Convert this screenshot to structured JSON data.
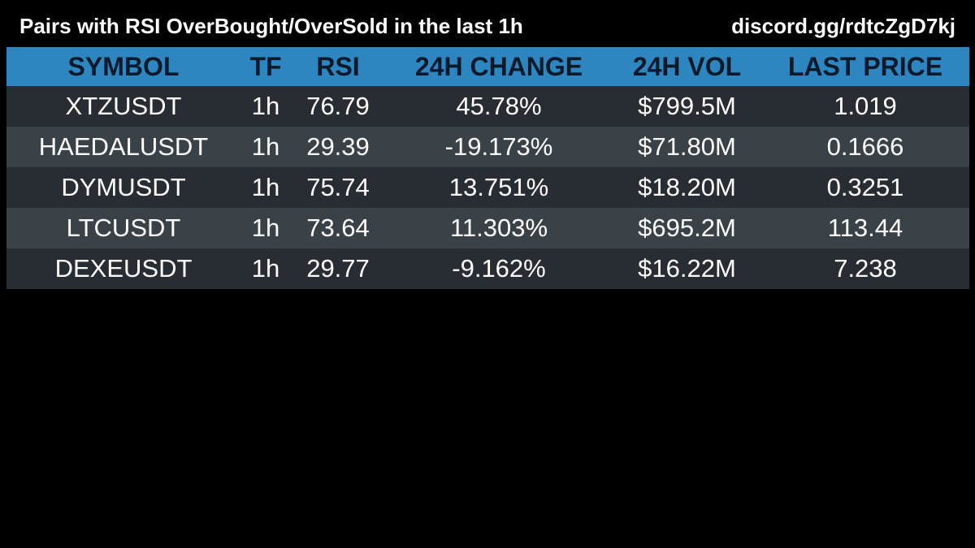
{
  "header": {
    "title": "Pairs with RSI OverBought/OverSold in the last 1h",
    "invite": "discord.gg/rdtcZgD7kj"
  },
  "table": {
    "columns": [
      "SYMBOL",
      "TF",
      "RSI",
      "24H CHANGE",
      "24H VOL",
      "LAST PRICE"
    ],
    "rows": [
      [
        "XTZUSDT",
        "1h",
        "76.79",
        "45.78%",
        "$799.5M",
        "1.019"
      ],
      [
        "HAEDALUSDT",
        "1h",
        "29.39",
        "-19.173%",
        "$71.80M",
        "0.1666"
      ],
      [
        "DYMUSDT",
        "1h",
        "75.74",
        "13.751%",
        "$18.20M",
        "0.3251"
      ],
      [
        "LTCUSDT",
        "1h",
        "73.64",
        "11.303%",
        "$695.2M",
        "113.44"
      ],
      [
        "DEXEUSDT",
        "1h",
        "29.77",
        "-9.162%",
        "$16.22M",
        "7.238"
      ]
    ]
  },
  "colors": {
    "background": "#000000",
    "header_row": "#2e86c1",
    "header_text": "#0b1a2b",
    "row_dark": "#272d33",
    "row_light": "#3a4147",
    "text": "#ffffff"
  }
}
